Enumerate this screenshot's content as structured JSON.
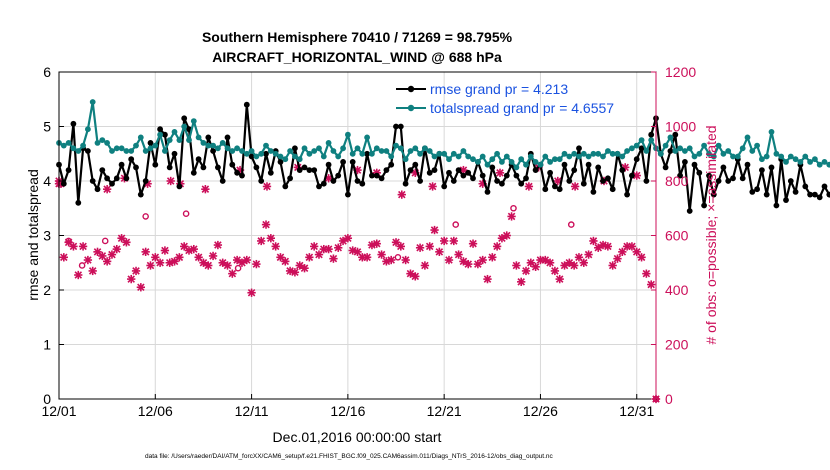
{
  "chart_data": {
    "type": "line",
    "title_line1": "Southern Hemisphere 70410 / 71269 = 98.795%",
    "title_line2": "AIRCRAFT_HORIZONTAL_WIND @ 688 hPa",
    "xlabel": "Dec.01,2016 00:00:00 start",
    "ylabel_left": "rmse and totalspread",
    "ylabel_right": "# of obs: o=possible; ×=assimilated",
    "footnote": "data file: /Users/raeder/DAI/ATM_forcXX/CAM6_setup/f.e21.FHIST_BGC.f09_025.CAM6assim.011/Diags_NTrS_2016-12/obs_diag_output.nc",
    "xlim": [
      1,
      32
    ],
    "ylim_left": [
      0,
      6
    ],
    "ylim_right": [
      0,
      1200
    ],
    "x_ticks": [
      1,
      6,
      11,
      16,
      21,
      26,
      31
    ],
    "x_tick_labels": [
      "12/01",
      "12/06",
      "12/11",
      "12/16",
      "12/21",
      "12/26",
      "12/31"
    ],
    "y_left_ticks": [
      "0",
      "1",
      "2",
      "3",
      "4",
      "5",
      "6"
    ],
    "y_right_ticks": [
      "0",
      "200",
      "400",
      "600",
      "800",
      "1000",
      "1200"
    ],
    "x_start": 1.0,
    "x_step": 0.25,
    "colors": {
      "rmse": "#000000",
      "totalspread": "#0f8080",
      "obs": "#cc0f5a",
      "legend_text": "#1a52e0",
      "grid": "#d8d8d8"
    },
    "series": [
      {
        "name": "rmse grand pr = 4.213",
        "axis": "left",
        "values": [
          4.3,
          3.95,
          4.2,
          5.05,
          3.6,
          4.6,
          4.55,
          4.0,
          3.85,
          4.2,
          4.05,
          3.95,
          4.05,
          4.3,
          4.05,
          4.4,
          4.25,
          3.75,
          4.0,
          4.7,
          4.3,
          4.95,
          4.85,
          4.25,
          4.5,
          3.9,
          5.15,
          4.95,
          4.15,
          4.4,
          4.25,
          4.8,
          4.55,
          4.25,
          4.0,
          4.8,
          4.3,
          4.15,
          4.1,
          5.4,
          4.45,
          4.25,
          4.0,
          4.5,
          4.15,
          4.55,
          4.35,
          3.9,
          4.05,
          4.6,
          4.2,
          4.25,
          4.2,
          4.2,
          3.9,
          3.95,
          4.3,
          4.0,
          4.1,
          4.35,
          3.75,
          4.35,
          4.0,
          3.95,
          4.5,
          4.1,
          4.1,
          4.05,
          4.2,
          4.3,
          5.0,
          5.0,
          3.95,
          4.2,
          4.3,
          4.0,
          4.6,
          4.15,
          4.2,
          4.5,
          3.9,
          4.15,
          4.0,
          4.2,
          4.1,
          4.15,
          4.05,
          4.35,
          4.1,
          3.8,
          4.25,
          4.0,
          3.95,
          4.1,
          4.3,
          4.1,
          3.95,
          4.05,
          4.5,
          4.2,
          4.3,
          3.85,
          4.15,
          3.9,
          3.85,
          4.3,
          4.0,
          4.2,
          4.6,
          3.95,
          4.3,
          3.8,
          4.25,
          4.0,
          4.05,
          3.85,
          4.5,
          4.2,
          3.75,
          4.1,
          4.4,
          4.6,
          4.0,
          4.85,
          5.15,
          4.5,
          4.25,
          4.55,
          4.85,
          4.1,
          4.35,
          3.45,
          4.3,
          4.15,
          3.55,
          4.1,
          3.75,
          4.0,
          4.25,
          4.0,
          4.05,
          4.4,
          4.05,
          4.3,
          3.8,
          3.85,
          4.2,
          3.75,
          4.25,
          3.55,
          4.4,
          3.65,
          4.0,
          3.8,
          4.3,
          3.9,
          3.75,
          3.75,
          3.7,
          3.9,
          3.75,
          3.6,
          3.5,
          4.05
        ]
      },
      {
        "name": "totalspread grand pr = 4.6557",
        "axis": "left",
        "values": [
          4.7,
          4.65,
          4.7,
          4.6,
          4.55,
          4.65,
          4.95,
          5.45,
          4.7,
          4.75,
          4.7,
          4.55,
          4.6,
          4.6,
          4.55,
          4.55,
          4.65,
          4.8,
          4.55,
          4.6,
          4.65,
          4.85,
          4.55,
          4.75,
          4.9,
          4.75,
          5.0,
          4.75,
          5.1,
          4.8,
          4.7,
          4.65,
          4.65,
          4.6,
          4.7,
          4.6,
          4.55,
          4.6,
          4.55,
          4.5,
          4.55,
          4.45,
          4.5,
          4.65,
          4.55,
          4.5,
          4.45,
          4.4,
          4.55,
          4.45,
          4.4,
          4.6,
          4.5,
          4.55,
          4.6,
          4.45,
          4.7,
          4.55,
          4.45,
          4.6,
          4.85,
          4.5,
          4.6,
          4.5,
          4.8,
          4.5,
          4.6,
          4.55,
          4.55,
          4.45,
          4.65,
          4.6,
          4.4,
          4.55,
          4.6,
          4.5,
          4.6,
          4.55,
          4.45,
          4.5,
          4.5,
          4.4,
          4.5,
          4.45,
          4.55,
          4.45,
          4.4,
          4.35,
          4.45,
          4.3,
          4.4,
          4.5,
          4.35,
          4.45,
          4.35,
          4.25,
          4.4,
          4.3,
          4.45,
          4.35,
          4.3,
          4.45,
          4.35,
          4.4,
          4.4,
          4.5,
          4.45,
          4.5,
          4.45,
          4.5,
          4.45,
          4.5,
          4.5,
          4.45,
          4.55,
          4.5,
          4.5,
          4.45,
          4.55,
          4.6,
          4.65,
          4.75,
          4.55,
          4.75,
          4.6,
          4.5,
          4.65,
          4.8,
          4.55,
          4.6,
          4.55,
          4.6,
          4.45,
          4.5,
          4.65,
          4.5,
          4.45,
          4.65,
          4.5,
          4.55,
          4.45,
          4.45,
          4.6,
          4.8,
          4.55,
          4.65,
          4.4,
          4.45,
          4.9,
          4.5,
          4.45,
          4.35,
          4.45,
          4.4,
          4.35,
          4.45,
          4.35,
          4.4,
          4.3,
          4.35,
          4.3,
          4.25,
          4.3,
          4.25,
          4.3,
          4.25
        ]
      }
    ],
    "obs_possible": [
      [
        1.5,
        580
      ],
      [
        2.2,
        490
      ],
      [
        3.4,
        580
      ],
      [
        5.5,
        670
      ],
      [
        7.6,
        680
      ],
      [
        10.3,
        480
      ],
      [
        18.6,
        520
      ],
      [
        21.6,
        640
      ],
      [
        24.6,
        700
      ],
      [
        27.6,
        640
      ],
      [
        32.0,
        0
      ]
    ],
    "obs_assimilated": [
      [
        1.0,
        800
      ],
      [
        1.1,
        790
      ],
      [
        1.25,
        520
      ],
      [
        1.5,
        575
      ],
      [
        1.75,
        560
      ],
      [
        2.0,
        455
      ],
      [
        2.25,
        560
      ],
      [
        2.5,
        510
      ],
      [
        2.75,
        470
      ],
      [
        3.0,
        540
      ],
      [
        3.25,
        525
      ],
      [
        3.5,
        505
      ],
      [
        3.75,
        530
      ],
      [
        4.0,
        550
      ],
      [
        4.25,
        590
      ],
      [
        4.5,
        575
      ],
      [
        4.75,
        440
      ],
      [
        5.0,
        470
      ],
      [
        5.25,
        410
      ],
      [
        5.5,
        540
      ],
      [
        5.75,
        490
      ],
      [
        6.0,
        520
      ],
      [
        6.25,
        500
      ],
      [
        6.5,
        545
      ],
      [
        6.75,
        500
      ],
      [
        7.0,
        505
      ],
      [
        7.25,
        520
      ],
      [
        7.5,
        560
      ],
      [
        7.75,
        545
      ],
      [
        8.0,
        550
      ],
      [
        8.25,
        520
      ],
      [
        8.5,
        500
      ],
      [
        8.75,
        490
      ],
      [
        9.0,
        525
      ],
      [
        9.25,
        565
      ],
      [
        9.5,
        500
      ],
      [
        9.75,
        490
      ],
      [
        10.0,
        460
      ],
      [
        10.25,
        510
      ],
      [
        10.5,
        500
      ],
      [
        10.75,
        510
      ],
      [
        11.0,
        390
      ],
      [
        11.25,
        495
      ],
      [
        11.5,
        580
      ],
      [
        11.75,
        640
      ],
      [
        12.0,
        590
      ],
      [
        12.25,
        560
      ],
      [
        12.5,
        520
      ],
      [
        12.75,
        505
      ],
      [
        13.0,
        470
      ],
      [
        13.25,
        465
      ],
      [
        13.5,
        490
      ],
      [
        13.75,
        480
      ],
      [
        14.0,
        520
      ],
      [
        14.25,
        560
      ],
      [
        14.5,
        530
      ],
      [
        14.75,
        550
      ],
      [
        15.0,
        550
      ],
      [
        15.25,
        515
      ],
      [
        15.5,
        555
      ],
      [
        15.75,
        580
      ],
      [
        16.0,
        590
      ],
      [
        16.25,
        545
      ],
      [
        16.5,
        540
      ],
      [
        16.75,
        520
      ],
      [
        17.0,
        520
      ],
      [
        17.25,
        565
      ],
      [
        17.5,
        570
      ],
      [
        17.75,
        530
      ],
      [
        18.0,
        505
      ],
      [
        18.25,
        510
      ],
      [
        18.5,
        575
      ],
      [
        18.75,
        560
      ],
      [
        19.0,
        510
      ],
      [
        19.25,
        460
      ],
      [
        19.5,
        450
      ],
      [
        19.75,
        555
      ],
      [
        20.0,
        490
      ],
      [
        20.25,
        560
      ],
      [
        20.5,
        620
      ],
      [
        20.75,
        540
      ],
      [
        21.0,
        580
      ],
      [
        21.25,
        510
      ],
      [
        21.5,
        580
      ],
      [
        21.75,
        530
      ],
      [
        22.0,
        505
      ],
      [
        22.25,
        495
      ],
      [
        22.5,
        570
      ],
      [
        22.75,
        495
      ],
      [
        23.0,
        510
      ],
      [
        23.25,
        440
      ],
      [
        23.5,
        520
      ],
      [
        23.75,
        560
      ],
      [
        24.0,
        590
      ],
      [
        24.25,
        600
      ],
      [
        24.5,
        670
      ],
      [
        24.75,
        490
      ],
      [
        25.0,
        430
      ],
      [
        25.25,
        470
      ],
      [
        25.5,
        500
      ],
      [
        25.75,
        485
      ],
      [
        26.0,
        510
      ],
      [
        26.25,
        510
      ],
      [
        26.5,
        500
      ],
      [
        26.75,
        470
      ],
      [
        27.0,
        440
      ],
      [
        27.25,
        490
      ],
      [
        27.5,
        500
      ],
      [
        27.75,
        490
      ],
      [
        28.0,
        520
      ],
      [
        28.25,
        500
      ],
      [
        28.5,
        530
      ],
      [
        28.75,
        580
      ],
      [
        29.0,
        555
      ],
      [
        29.25,
        565
      ],
      [
        29.5,
        560
      ],
      [
        29.75,
        490
      ],
      [
        30.0,
        515
      ],
      [
        30.25,
        540
      ],
      [
        30.5,
        560
      ],
      [
        30.75,
        560
      ],
      [
        31.0,
        540
      ],
      [
        31.25,
        520
      ],
      [
        31.5,
        460
      ],
      [
        31.75,
        420
      ],
      [
        32.0,
        0
      ],
      [
        1.0,
        790
      ],
      [
        3.5,
        770
      ],
      [
        4.4,
        810
      ],
      [
        5.6,
        790
      ],
      [
        6.8,
        800
      ],
      [
        7.3,
        790
      ],
      [
        8.6,
        770
      ],
      [
        10.4,
        840
      ],
      [
        11.8,
        780
      ],
      [
        13.4,
        850
      ],
      [
        15.0,
        810
      ],
      [
        16.5,
        840
      ],
      [
        17.5,
        830
      ],
      [
        18.8,
        750
      ],
      [
        19.5,
        830
      ],
      [
        20.4,
        780
      ],
      [
        22.0,
        840
      ],
      [
        23.0,
        790
      ],
      [
        23.9,
        830
      ],
      [
        25.4,
        780
      ],
      [
        25.9,
        850
      ],
      [
        26.9,
        800
      ],
      [
        27.8,
        780
      ],
      [
        29.3,
        800
      ],
      [
        30.4,
        850
      ],
      [
        31.0,
        820
      ]
    ]
  }
}
